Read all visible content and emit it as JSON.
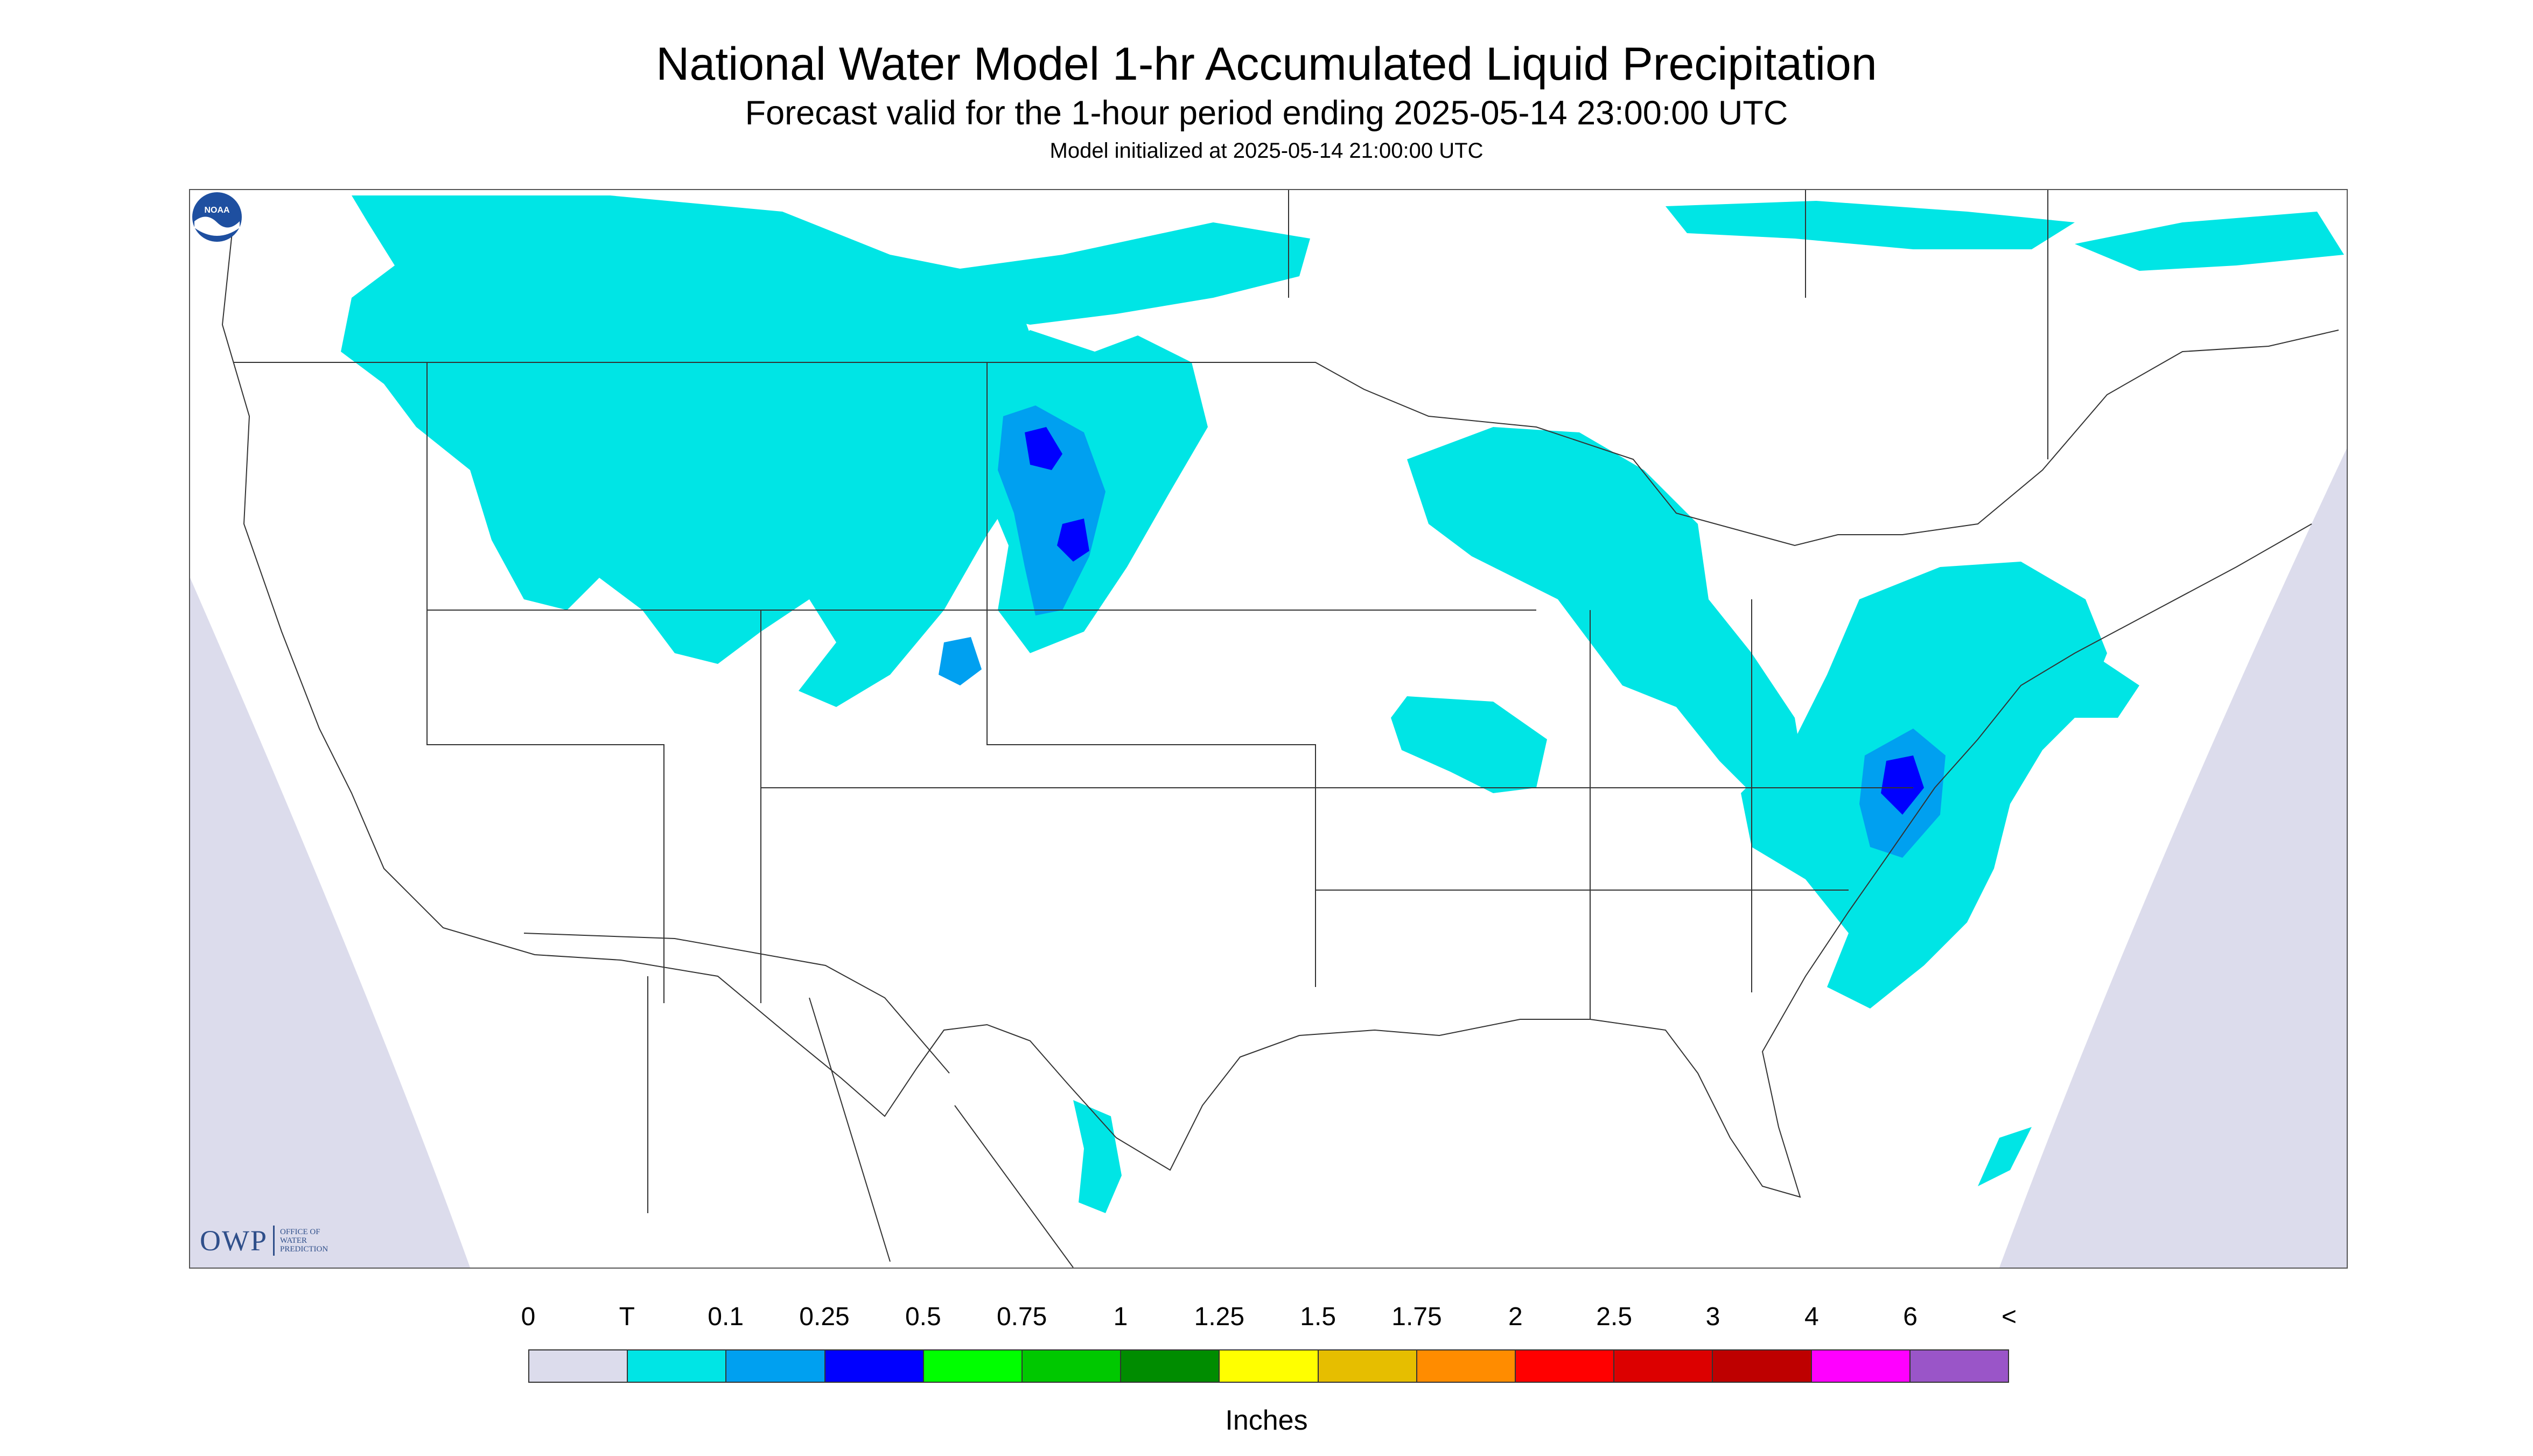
{
  "titles": {
    "main": "National Water Model 1-hr Accumulated Liquid Precipitation",
    "subtitle": "Forecast valid for the 1-hour period ending 2025-05-14 23:00:00 UTC",
    "initialized": "Model initialized at 2025-05-14 21:00:00 UTC"
  },
  "colors": {
    "background_outside": "#dcdcec",
    "land": "#ffffff",
    "boundary_lines": "#333333",
    "trace": "#00e5e5",
    "light": "#00a0f0",
    "moderate": "#0000ff"
  },
  "logos": {
    "owp_big": "OWP",
    "owp_small": "OFFICE OF\nWATER\nPREDICTION",
    "noaa": "NOAA"
  },
  "legend": {
    "labels": [
      "0",
      "T",
      "0.1",
      "0.25",
      "0.5",
      "0.75",
      "1",
      "1.25",
      "1.5",
      "1.75",
      "2",
      "2.5",
      "3",
      "4",
      "6",
      "<"
    ],
    "swatches": [
      "#dcdcec",
      "#00e5e5",
      "#00a0f0",
      "#0000ff",
      "#00ff00",
      "#00c800",
      "#008c00",
      "#ffff00",
      "#e6be00",
      "#ff8c00",
      "#ff0000",
      "#dc0000",
      "#be0000",
      "#ff00ff",
      "#9a55c8"
    ],
    "units": "Inches"
  }
}
